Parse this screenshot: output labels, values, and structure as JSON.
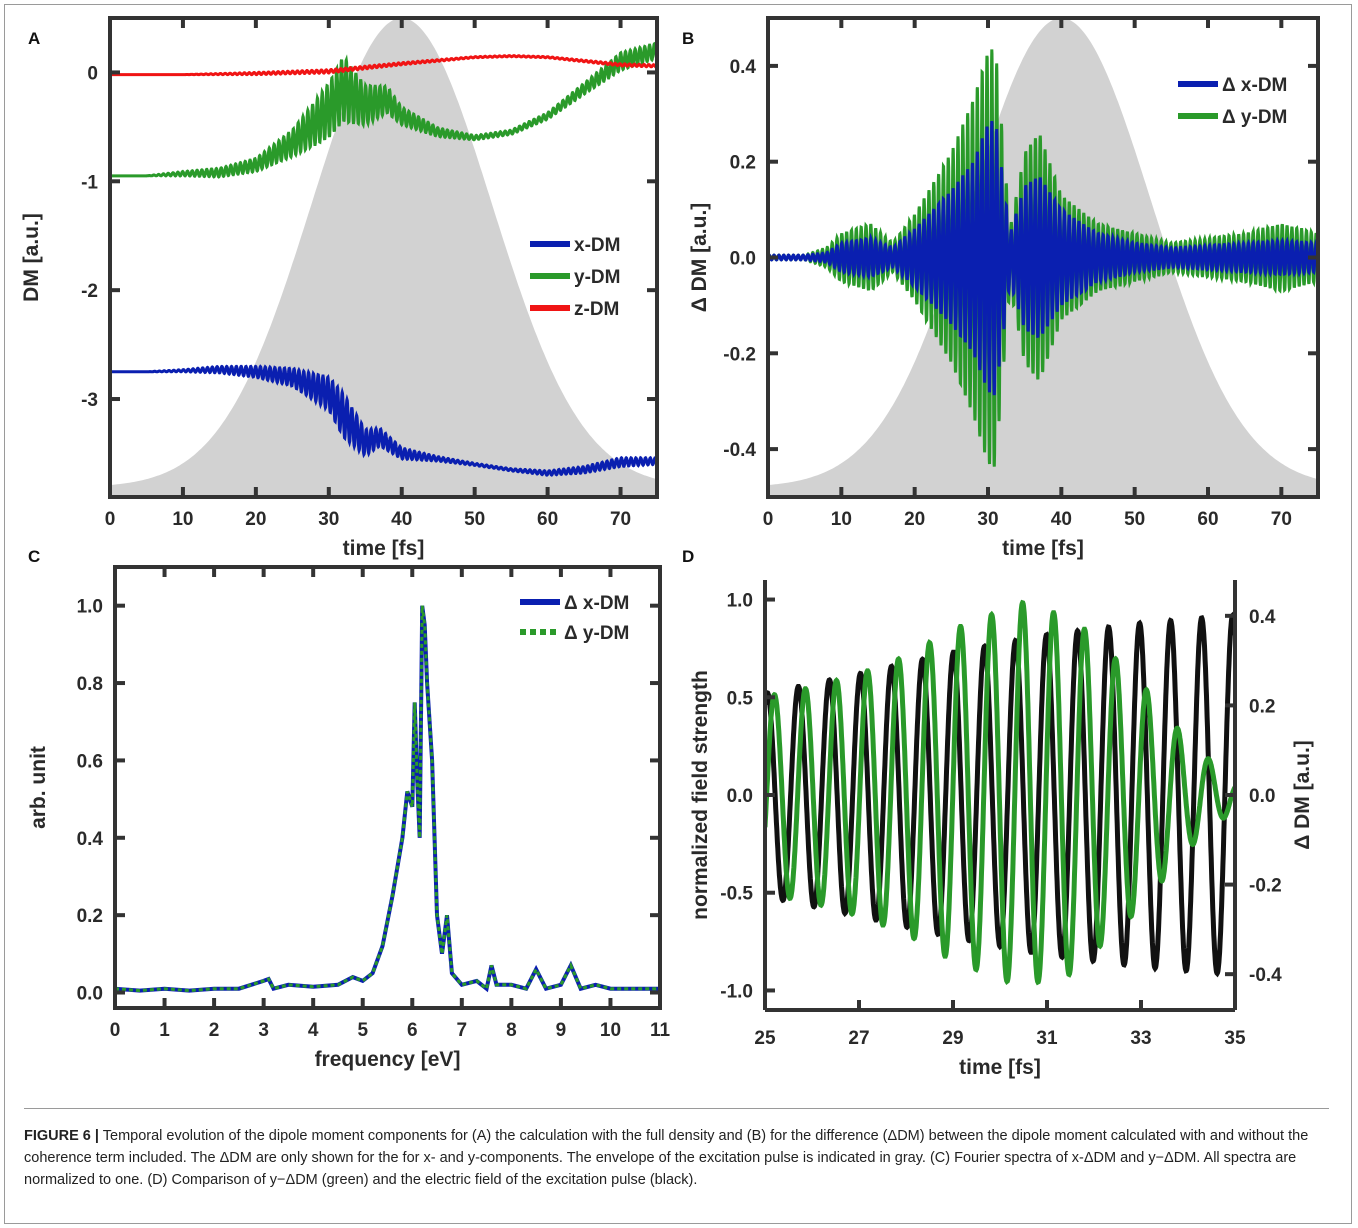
{
  "panels": {
    "A": {
      "letter": "A"
    },
    "B": {
      "letter": "B"
    },
    "C": {
      "letter": "C"
    },
    "D": {
      "letter": "D"
    }
  },
  "caption": {
    "label": "FIGURE 6 |",
    "text": "Temporal evolution of the dipole moment components for (A) the calculation with the full density and (B) for the difference (ΔDM) between the dipole moment calculated with and without the coherence term included. The ΔDM are only shown for the for x- and y-components. The envelope of the excitation pulse is indicated in gray. (C) Fourier spectra of x-ΔDM and y−ΔDM. All spectra are normalized to one. (D) Comparison of y−ΔDM (green) and the electric field of the excitation pulse (black)."
  },
  "colors": {
    "blue": "#0a1fb0",
    "green": "#2a9a2a",
    "red": "#f01414",
    "gray": "#d2d2d2",
    "black": "#111111",
    "axis": "#333333"
  },
  "chart_data": [
    {
      "panel": "A",
      "type": "line",
      "xlabel": "time [fs]",
      "ylabel": "DM [a.u.]",
      "xlim": [
        0,
        75
      ],
      "ylim": [
        -3.9,
        0.5
      ],
      "xticks": [
        0,
        10,
        20,
        30,
        40,
        50,
        60,
        70
      ],
      "yticks": [
        0,
        -1,
        -2,
        -3
      ],
      "legend_position": "center-right",
      "envelope": {
        "shape": "gaussian",
        "center": 40,
        "fwhm": 29,
        "color": "gray"
      },
      "series": [
        {
          "name": "x-DM",
          "color": "blue",
          "x": [
            0,
            5,
            10,
            15,
            20,
            25,
            30,
            32,
            35,
            37,
            40,
            45,
            50,
            55,
            60,
            65,
            70,
            75
          ],
          "y": [
            -2.75,
            -2.75,
            -2.74,
            -2.73,
            -2.75,
            -2.8,
            -2.95,
            -3.15,
            -3.4,
            -3.35,
            -3.5,
            -3.55,
            -3.6,
            -3.65,
            -3.68,
            -3.65,
            -3.58,
            -3.57
          ],
          "oscillation_amplitude": [
            0,
            0,
            0.01,
            0.03,
            0.05,
            0.08,
            0.15,
            0.2,
            0.12,
            0.08,
            0.05,
            0.02,
            0.01,
            0.01,
            0.02,
            0.03,
            0.04,
            0.03
          ]
        },
        {
          "name": "y-DM",
          "color": "green",
          "x": [
            0,
            5,
            10,
            15,
            20,
            25,
            30,
            32,
            35,
            38,
            40,
            45,
            50,
            55,
            60,
            65,
            70,
            75
          ],
          "y": [
            -0.95,
            -0.95,
            -0.93,
            -0.92,
            -0.85,
            -0.65,
            -0.35,
            -0.15,
            -0.3,
            -0.25,
            -0.4,
            -0.55,
            -0.6,
            -0.55,
            -0.4,
            -0.15,
            0.1,
            0.2
          ],
          "oscillation_amplitude": [
            0,
            0,
            0.02,
            0.04,
            0.06,
            0.12,
            0.25,
            0.3,
            0.18,
            0.12,
            0.08,
            0.04,
            0.02,
            0.02,
            0.03,
            0.05,
            0.08,
            0.07
          ]
        },
        {
          "name": "z-DM",
          "color": "red",
          "x": [
            0,
            10,
            20,
            30,
            40,
            50,
            55,
            60,
            70,
            75
          ],
          "y": [
            -0.02,
            -0.02,
            -0.01,
            0.01,
            0.08,
            0.14,
            0.15,
            0.14,
            0.07,
            0.06
          ],
          "oscillation_amplitude": [
            0,
            0,
            0.01,
            0.015,
            0.01,
            0.005,
            0.005,
            0.005,
            0.01,
            0.01
          ]
        }
      ]
    },
    {
      "panel": "B",
      "type": "line",
      "xlabel": "time [fs]",
      "ylabel": "Δ DM [a.u.]",
      "xlim": [
        0,
        75
      ],
      "ylim": [
        -0.5,
        0.5
      ],
      "xticks": [
        0,
        10,
        20,
        30,
        40,
        50,
        60,
        70
      ],
      "yticks": [
        0.4,
        0.2,
        0.0,
        -0.2,
        -0.4
      ],
      "ytick_labels": [
        "0.4",
        "0.2",
        "0.0",
        "-0.2",
        "-0.4"
      ],
      "legend_position": "top-right",
      "envelope": {
        "shape": "gaussian",
        "center": 40,
        "fwhm": 29,
        "color": "gray"
      },
      "series": [
        {
          "name": "Δ x-DM",
          "color": "blue",
          "x": [
            0,
            5,
            8,
            10,
            14,
            17,
            20,
            25,
            28,
            30,
            31,
            33,
            35,
            37,
            40,
            45,
            50,
            55,
            60,
            65,
            70,
            75
          ],
          "envelope": [
            0.005,
            0.005,
            0.01,
            0.03,
            0.04,
            0.02,
            0.06,
            0.14,
            0.2,
            0.28,
            0.29,
            0.05,
            0.15,
            0.17,
            0.1,
            0.05,
            0.03,
            0.02,
            0.025,
            0.03,
            0.035,
            0.03
          ]
        },
        {
          "name": "Δ y-DM",
          "color": "green",
          "x": [
            0,
            5,
            8,
            10,
            14,
            17,
            20,
            25,
            28,
            30,
            31,
            33,
            35,
            37,
            40,
            45,
            50,
            55,
            60,
            65,
            70,
            75
          ],
          "envelope": [
            0.005,
            0.005,
            0.02,
            0.05,
            0.07,
            0.03,
            0.09,
            0.22,
            0.33,
            0.43,
            0.44,
            0.06,
            0.22,
            0.26,
            0.13,
            0.07,
            0.05,
            0.03,
            0.04,
            0.05,
            0.07,
            0.05
          ]
        }
      ]
    },
    {
      "panel": "C",
      "type": "line",
      "xlabel": "frequency [eV]",
      "ylabel": "arb. unit",
      "xlim": [
        0,
        11
      ],
      "ylim": [
        -0.04,
        1.1
      ],
      "xticks": [
        0,
        1,
        2,
        3,
        4,
        5,
        6,
        7,
        8,
        9,
        10,
        11
      ],
      "yticks": [
        0.0,
        0.2,
        0.4,
        0.6,
        0.8,
        1.0
      ],
      "ytick_labels": [
        "0.0",
        "0.2",
        "0.4",
        "0.6",
        "0.8",
        "1.0"
      ],
      "legend_position": "top-right",
      "series": [
        {
          "name": "Δ x-DM",
          "color": "blue",
          "style": "solid",
          "x": [
            0,
            0.5,
            1,
            1.5,
            2,
            2.5,
            3,
            3.1,
            3.2,
            3.5,
            4,
            4.5,
            4.8,
            5,
            5.2,
            5.4,
            5.6,
            5.8,
            5.9,
            6.0,
            6.05,
            6.1,
            6.15,
            6.2,
            6.25,
            6.3,
            6.4,
            6.5,
            6.6,
            6.7,
            6.8,
            7,
            7.3,
            7.5,
            7.6,
            7.7,
            8,
            8.3,
            8.5,
            8.7,
            9,
            9.2,
            9.4,
            9.7,
            10,
            10.5,
            11
          ],
          "y": [
            0.01,
            0.005,
            0.01,
            0.005,
            0.01,
            0.01,
            0.03,
            0.035,
            0.01,
            0.02,
            0.015,
            0.02,
            0.04,
            0.03,
            0.05,
            0.12,
            0.25,
            0.4,
            0.52,
            0.48,
            0.75,
            0.55,
            0.4,
            1.0,
            0.95,
            0.8,
            0.6,
            0.2,
            0.1,
            0.2,
            0.05,
            0.02,
            0.03,
            0.01,
            0.07,
            0.02,
            0.02,
            0.01,
            0.06,
            0.01,
            0.02,
            0.07,
            0.01,
            0.02,
            0.01,
            0.01,
            0.01
          ]
        },
        {
          "name": "Δ y-DM",
          "color": "green",
          "style": "dotted",
          "x": [
            0,
            0.5,
            1,
            1.5,
            2,
            2.5,
            3,
            3.1,
            3.2,
            3.5,
            4,
            4.5,
            4.8,
            5,
            5.2,
            5.4,
            5.6,
            5.8,
            5.9,
            6.0,
            6.05,
            6.1,
            6.15,
            6.2,
            6.25,
            6.3,
            6.4,
            6.5,
            6.6,
            6.7,
            6.8,
            7,
            7.3,
            7.5,
            7.6,
            7.7,
            8,
            8.3,
            8.5,
            8.7,
            9,
            9.2,
            9.4,
            9.7,
            10,
            10.5,
            11
          ],
          "y": [
            0.01,
            0.005,
            0.01,
            0.005,
            0.01,
            0.01,
            0.03,
            0.035,
            0.01,
            0.02,
            0.015,
            0.02,
            0.04,
            0.03,
            0.05,
            0.12,
            0.25,
            0.4,
            0.52,
            0.48,
            0.75,
            0.55,
            0.4,
            1.0,
            0.95,
            0.8,
            0.6,
            0.2,
            0.1,
            0.2,
            0.05,
            0.02,
            0.03,
            0.01,
            0.07,
            0.02,
            0.02,
            0.01,
            0.06,
            0.01,
            0.02,
            0.07,
            0.01,
            0.02,
            0.01,
            0.01,
            0.01
          ]
        }
      ]
    },
    {
      "panel": "D",
      "type": "line",
      "xlabel": "time [fs]",
      "ylabel": "normalized field strength",
      "ylabel_right": "Δ DM [a.u.]",
      "xlim": [
        25,
        35
      ],
      "ylim": [
        -1.1,
        1.1
      ],
      "ylim_right": [
        -0.48,
        0.48
      ],
      "xticks": [
        25,
        27,
        29,
        31,
        33,
        35
      ],
      "yticks": [
        1.0,
        0.5,
        0.0,
        -0.5,
        -1.0
      ],
      "ytick_labels": [
        "1.0",
        "0.5",
        "0.0",
        "-0.5",
        "-1.0"
      ],
      "yticks_right": [
        0.4,
        0.2,
        0.0,
        -0.2,
        -0.4
      ],
      "ytick_labels_right": [
        "0.4",
        "0.2",
        "0.0",
        "-0.2",
        "-0.4"
      ],
      "series": [
        {
          "name": "electric field",
          "color": "black",
          "axis": "left",
          "period_fs": 0.66,
          "phase_fs": 25.05,
          "amplitude_t": [
            25,
            27,
            29,
            31,
            33,
            35
          ],
          "amplitude": [
            0.52,
            0.62,
            0.73,
            0.82,
            0.88,
            0.92
          ]
        },
        {
          "name": "y−ΔDM",
          "color": "green",
          "axis": "right",
          "period_fs": 0.66,
          "phase_fs": 25.2,
          "amplitude_t": [
            25,
            26,
            27,
            28,
            29,
            30,
            30.5,
            31,
            31.5,
            32,
            33,
            34,
            35
          ],
          "amplitude": [
            0.22,
            0.24,
            0.27,
            0.31,
            0.37,
            0.41,
            0.43,
            0.41,
            0.4,
            0.35,
            0.25,
            0.12,
            0.03
          ]
        }
      ]
    }
  ]
}
